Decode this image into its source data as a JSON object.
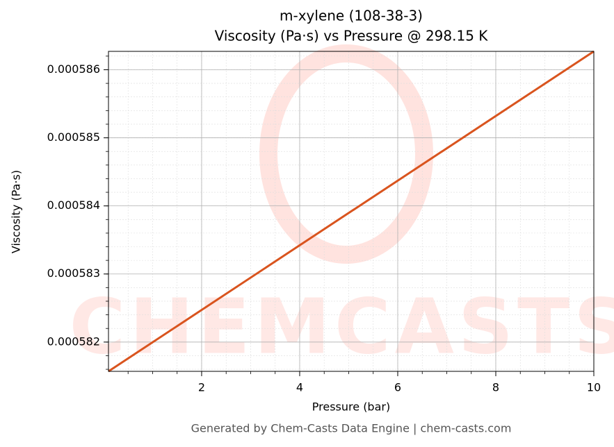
{
  "chart_data": {
    "type": "line",
    "title": "m-xylene (108-38-3)",
    "subtitle": "Viscosity (Pa·s) vs Pressure @ 298.15 K",
    "x_label": "Pressure (bar)",
    "y_label": "Viscosity (Pa·s)",
    "watermark": "CHEMCASTS",
    "footer": "Generated by Chem-Casts Data Engine | chem-casts.com",
    "x": [
      0.1,
      10
    ],
    "series": [
      {
        "name": "Viscosity",
        "color": "#d9541e",
        "values": [
          0.00058157,
          0.00058627
        ]
      }
    ],
    "xlim": [
      0.1,
      10
    ],
    "xticks": [
      2,
      4,
      6,
      8,
      10
    ],
    "ylim": [
      0.00058157,
      0.00058627
    ],
    "yticks": [
      0.000582,
      0.000583,
      0.000584,
      0.000585,
      0.000586
    ],
    "grid": true
  }
}
